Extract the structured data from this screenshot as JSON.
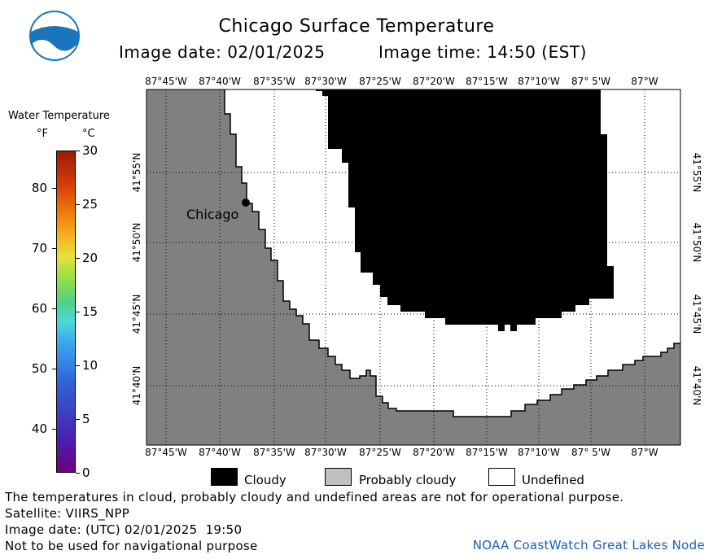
{
  "header": {
    "logo_text": "NOAA",
    "title": "Chicago Surface Temperature",
    "image_date": "Image date: 02/01/2025",
    "image_time": "Image time: 14:50 (EST)"
  },
  "colorbar": {
    "title": "Water Temperature",
    "unit_f": "°F",
    "unit_c": "°C",
    "fahrenheit_ticks": [
      "80",
      "70",
      "60",
      "50",
      "40"
    ],
    "celsius_ticks": [
      "30",
      "25",
      "20",
      "15",
      "10",
      "5",
      "0"
    ]
  },
  "map": {
    "lon_labels": [
      "87°45'W",
      "87°40'W",
      "87°35'W",
      "87°30'W",
      "87°25'W",
      "87°20'W",
      "87°15'W",
      "87°10'W",
      "87° 5'W",
      "87°W"
    ],
    "lat_labels": [
      "41°55'N",
      "41°50'N",
      "41°45'N",
      "41°40'N"
    ],
    "city_label": "Chicago",
    "colors": {
      "land": "#808080",
      "cloudy": "#000000",
      "undefined": "#ffffff",
      "probably_cloudy": "#c0c0c0"
    }
  },
  "legend": {
    "cloudy": "Cloudy",
    "probably_cloudy": "Probably cloudy",
    "undefined": "Undefined"
  },
  "footer": {
    "disclaimer": "The temperatures in cloud, probably cloudy and undefined areas are not for operational purpose.",
    "satellite": "Satellite: VIIRS_NPP",
    "utc_date": "Image date: (UTC) 02/01/2025  19:50",
    "nav_warning": "Not to be used for navigational purpose",
    "credit": "NOAA CoastWatch Great Lakes Node"
  }
}
